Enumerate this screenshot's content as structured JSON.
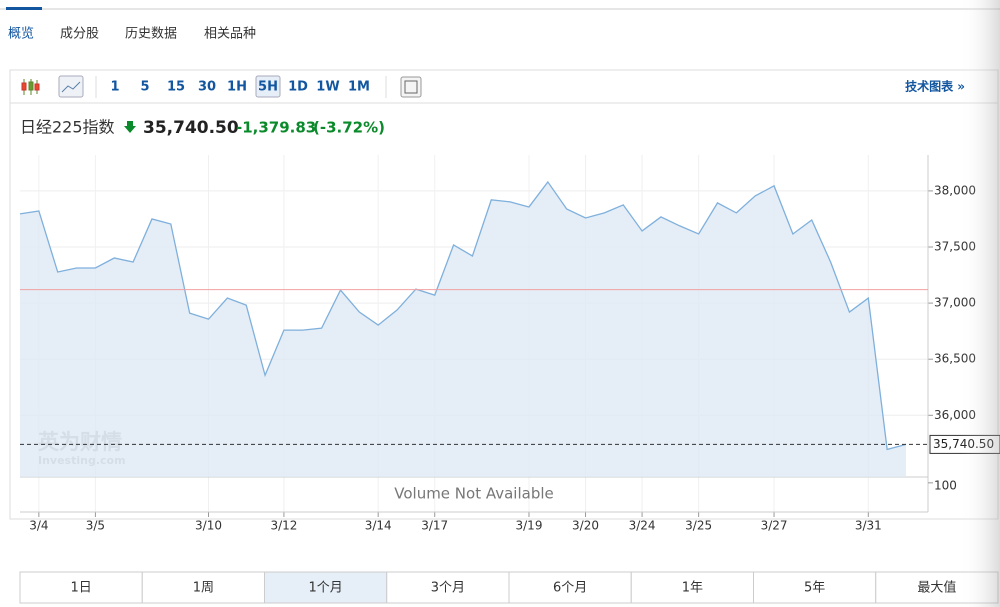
{
  "tabs": [
    "概览",
    "成分股",
    "历史数据",
    "相关品种"
  ],
  "toolbar": {
    "intervals": [
      "1",
      "5",
      "15",
      "30",
      "1H",
      "5H",
      "1D",
      "1W",
      "1M"
    ],
    "active_interval": "5H",
    "link": "技术图表 »"
  },
  "quote": {
    "name": "日经225指数",
    "price": "35,740.50",
    "change": "-1,379.83",
    "change_pct": "(-3.72%)"
  },
  "chart_data": {
    "type": "area",
    "categories": [
      null,
      "3/4",
      null,
      null,
      "3/5",
      null,
      null,
      null,
      null,
      null,
      "3/10",
      null,
      null,
      null,
      "3/12",
      null,
      null,
      null,
      null,
      "3/14",
      null,
      null,
      "3/17",
      null,
      null,
      null,
      null,
      "3/19",
      null,
      null,
      "3/20",
      null,
      null,
      "3/24",
      null,
      null,
      "3/25",
      null,
      null,
      null,
      "3/27",
      null,
      null,
      null,
      null,
      "3/31",
      null,
      null
    ],
    "values": [
      37795,
      37821,
      37277,
      37313,
      37313,
      37402,
      37366,
      37750,
      37705,
      36911,
      36857,
      37045,
      36982,
      36357,
      36759,
      36759,
      36777,
      37116,
      36920,
      36804,
      36938,
      37125,
      37071,
      37518,
      37420,
      37920,
      37902,
      37857,
      38080,
      37839,
      37759,
      37804,
      37875,
      37643,
      37768,
      37688,
      37616,
      37893,
      37804,
      37955,
      38045,
      37616,
      37741,
      37366,
      36920,
      37045,
      35696,
      35740.5
    ],
    "color": "#7fb0dc",
    "ylim": [
      35450,
      38320
    ],
    "yticks": [
      {
        "value": 36000,
        "label": "36,000"
      },
      {
        "value": 36500,
        "label": "36,500"
      },
      {
        "value": 37000,
        "label": "37,000"
      },
      {
        "value": 37500,
        "label": "37,500"
      },
      {
        "value": 38000,
        "label": "38,000"
      }
    ],
    "reference_line": 37120.33,
    "last_value": {
      "value": 35740.5,
      "label": "35,740.50"
    },
    "watermark": [
      "英为财情",
      "Investing.com"
    ],
    "volume_note": "Volume Not Available",
    "volume_ylim": [
      0,
      120
    ],
    "volume_yticks": [
      100
    ]
  },
  "range_buttons": [
    "1日",
    "1周",
    "1个月",
    "3个月",
    "6个月",
    "1年",
    "5年",
    "最大值"
  ],
  "active_range": "1个月"
}
